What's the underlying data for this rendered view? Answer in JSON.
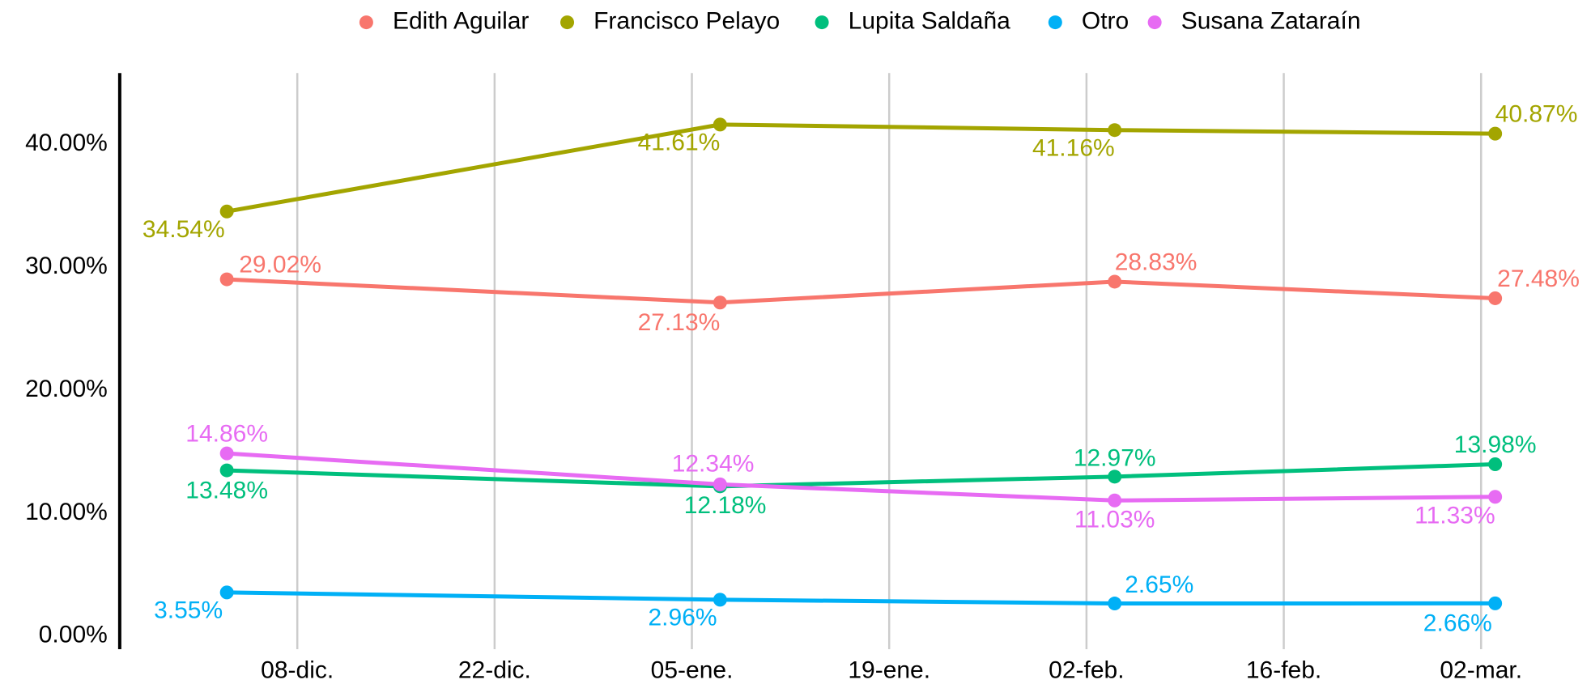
{
  "chart_data": {
    "type": "line",
    "legend": "top",
    "grid": true,
    "x": [
      3,
      38,
      66,
      93
    ],
    "xlim": [
      -4.6,
      99.8
    ],
    "xticks": [
      {
        "value": 8,
        "label": "08-dic."
      },
      {
        "value": 22,
        "label": "22-dic."
      },
      {
        "value": 36,
        "label": "05-ene."
      },
      {
        "value": 50,
        "label": "19-ene."
      },
      {
        "value": 64,
        "label": "02-feb."
      },
      {
        "value": 78,
        "label": "16-feb."
      },
      {
        "value": 92,
        "label": "02-mar."
      }
    ],
    "ylim": [
      -1.07,
      45.8
    ],
    "yticks": [
      {
        "value": 0,
        "label": "0.00%"
      },
      {
        "value": 10,
        "label": "10.00%"
      },
      {
        "value": 20,
        "label": "20.00%"
      },
      {
        "value": 30,
        "label": "30.00%"
      },
      {
        "value": 40,
        "label": "40.00%"
      }
    ],
    "series": [
      {
        "name": "Edith Aguilar",
        "color": "#F8766D",
        "values": [
          29.02,
          27.13,
          28.83,
          27.48
        ],
        "value_labels": [
          "29.02%",
          "27.13%",
          "28.83%",
          "27.48%"
        ]
      },
      {
        "name": "Francisco Pelayo",
        "color": "#A3A500",
        "values": [
          34.54,
          41.61,
          41.16,
          40.87
        ],
        "value_labels": [
          "34.54%",
          "41.61%",
          "41.16%",
          "40.87%"
        ]
      },
      {
        "name": "Lupita Saldaña",
        "color": "#00BF7D",
        "values": [
          13.48,
          12.18,
          12.97,
          13.98
        ],
        "value_labels": [
          "13.48%",
          "12.18%",
          "12.97%",
          "13.98%"
        ]
      },
      {
        "name": "Otro",
        "color": "#00B0F6",
        "values": [
          3.55,
          2.96,
          2.65,
          2.66
        ],
        "value_labels": [
          "3.55%",
          "2.96%",
          "2.65%",
          "2.66%"
        ]
      },
      {
        "name": "Susana Zataraín",
        "color": "#E76BF3",
        "values": [
          14.86,
          12.34,
          11.03,
          11.33
        ],
        "value_labels": [
          "14.86%",
          "12.34%",
          "11.03%",
          "11.33%"
        ]
      }
    ]
  }
}
